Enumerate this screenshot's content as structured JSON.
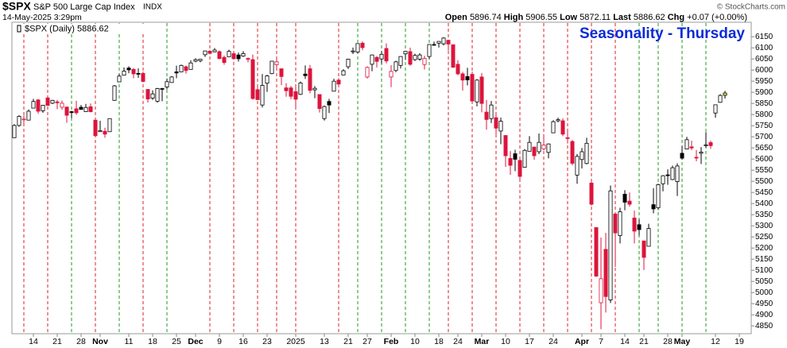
{
  "chart_data": {
    "type": "candlestick",
    "header": {
      "symbol": "$SPX",
      "name": "S&P 500 Large Cap Index",
      "exchange": "INDX",
      "datetime": "14-May-2025 3:29pm",
      "open_label": "Open",
      "high_label": "High",
      "low_label": "Low",
      "last_label": "Last",
      "chg_label": "Chg",
      "chg": "+0.07 (+0.00%)",
      "credit": "© StockCharts.com"
    },
    "legend_label": "$SPX (Daily)",
    "title": "Seasonality - Thursday",
    "open": [
      5696,
      5751,
      5778,
      5775,
      5829,
      5866,
      5817,
      5875,
      5851,
      5857,
      5833,
      5834,
      5813,
      5826,
      5833,
      5813,
      5835,
      5775,
      5723,
      5725,
      5723,
      5864,
      5947,
      5977,
      6009,
      6003,
      5985,
      5985,
      5913,
      5874,
      5860,
      5917,
      5924,
      5944,
      5992,
      5992,
      6015,
      6003,
      6040,
      6042,
      6069,
      6085,
      6082,
      6083,
      6057,
      6060,
      6074,
      6068,
      6063,
      6052,
      6047,
      5912,
      5843,
      5941,
      5984,
      6024,
      6006,
      5920,
      5920,
      5903,
      5891,
      5982,
      6006,
      5911,
      5890,
      5782,
      5859,
      5905,
      5955,
      5978,
      6015,
      6082,
      6081,
      6121,
      5969,
      6026,
      6057,
      6050,
      6097,
      5969,
      5998,
      6021,
      6073,
      6083,
      6047,
      6049,
      6025,
      6061,
      6115,
      6121,
      6118,
      6134,
      6114,
      6026,
      5983,
      5971,
      5981,
      5857,
      5969,
      5811,
      5782,
      5786,
      5726,
      5706,
      5603,
      5624,
      5594,
      5563,
      5635,
      5654,
      5633,
      5646,
      5630,
      5718,
      5772,
      5772,
      5696,
      5679,
      5528,
      5598,
      5580,
      5492,
      5292,
      4954,
      5194,
      4967,
      5353,
      5256,
      5442,
      5411,
      5335,
      5305,
      5232,
      5208,
      5395,
      5381,
      5489,
      5529,
      5508,
      5499,
      5626,
      5645,
      5655,
      5608,
      5626,
      5663,
      5674,
      5807,
      5855,
      5896.74
    ],
    "high": [
      5757,
      5797,
      5796,
      5823,
      5871,
      5870,
      5842,
      5878,
      5866,
      5866,
      5863,
      5835,
      5817,
      5862,
      5843,
      5848,
      5850,
      5775,
      5772,
      5741,
      5783,
      5933,
      5983,
      6012,
      6017,
      6009,
      6008,
      5993,
      5915,
      5909,
      5920,
      5920,
      5962,
      5973,
      6020,
      6025,
      6020,
      6044,
      6053,
      6050,
      6087,
      6089,
      6099,
      6088,
      6065,
      6092,
      6079,
      6079,
      6085,
      6057,
      6070,
      5935,
      5982,
      5979,
      6040,
      6049,
      6006,
      5941,
      5929,
      5935,
      5949,
      6021,
      6023,
      5928,
      5890,
      5841,
      5871,
      5961,
      5964,
      6004,
      6051,
      6101,
      6119,
      6129,
      6017,
      6070,
      6063,
      6086,
      6120,
      6022,
      6042,
      6062,
      6084,
      6101,
      6074,
      6076,
      6064,
      6116,
      6128,
      6129,
      6147,
      6135,
      6114,
      6044,
      5992,
      6010,
      5993,
      5959,
      5987,
      5866,
      5861,
      5812,
      5786,
      5706,
      5636,
      5642,
      5598,
      5645,
      5703,
      5654,
      5715,
      5712,
      5670,
      5775,
      5786,
      5783,
      5732,
      5686,
      5623,
      5650,
      5696,
      5501,
      5292,
      5247,
      5268,
      5481,
      5353,
      5381,
      5460,
      5450,
      5368,
      5329,
      5232,
      5309,
      5469,
      5489,
      5528,
      5554,
      5571,
      5581,
      5659,
      5700,
      5683,
      5641,
      5654,
      5721,
      5683,
      5845,
      5892,
      5906.55
    ],
    "low": [
      5696,
      5745,
      5762,
      5775,
      5829,
      5804,
      5808,
      5840,
      5847,
      5824,
      5822,
      5763,
      5784,
      5799,
      5823,
      5812,
      5810,
      5703,
      5723,
      5696,
      5723,
      5862,
      5947,
      5976,
      5986,
      5963,
      5965,
      5945,
      5854,
      5866,
      5854,
      5860,
      5913,
      5944,
      5963,
      5992,
      5984,
      6003,
      6035,
      6035,
      6059,
      6071,
      6080,
      6048,
      6024,
      6060,
      6051,
      6038,
      6059,
      6035,
      5867,
      5866,
      5832,
      5902,
      5981,
      6007,
      5932,
      5880,
      5869,
      5829,
      5888,
      5960,
      5896,
      5874,
      5809,
      5773,
      5807,
      5905,
      5931,
      5978,
      6005,
      6072,
      6075,
      6089,
      5962,
      5995,
      6012,
      6028,
      6030,
      5923,
      5991,
      6007,
      6046,
      6019,
      6041,
      6042,
      6003,
      6049,
      6111,
      6101,
      6111,
      6088,
      6009,
      5977,
      5908,
      5931,
      5858,
      5837,
      5810,
      5732,
      5762,
      5712,
      5667,
      5565,
      5529,
      5546,
      5504,
      5563,
      5635,
      5597,
      5622,
      5639,
      5603,
      5718,
      5765,
      5703,
      5670,
      5572,
      5489,
      5558,
      5576,
      5391,
      5070,
      4835,
      4910,
      4953,
      5115,
      5221,
      5370,
      5386,
      5221,
      5256,
      5101,
      5208,
      5356,
      5371,
      5455,
      5484,
      5505,
      5434,
      5597,
      5645,
      5640,
      5590,
      5578,
      5651,
      5646,
      5786,
      5853,
      5872.11
    ],
    "close": [
      5751,
      5792,
      5780,
      5815,
      5859,
      5815,
      5842,
      5841,
      5864,
      5853,
      5851,
      5797,
      5809,
      5808,
      5823,
      5832,
      5813,
      5705,
      5728,
      5712,
      5782,
      5929,
      5973,
      5995,
      6001,
      5983,
      5985,
      5949,
      5870,
      5893,
      5917,
      5917,
      5948,
      5969,
      5987,
      6021,
      5998,
      6032,
      6047,
      6049,
      6086,
      6075,
      6090,
      6052,
      6034,
      6084,
      6051,
      6051,
      6074,
      6050,
      5872,
      5867,
      5931,
      5974,
      6040,
      6037,
      5971,
      5907,
      5882,
      5869,
      5942,
      5975,
      5909,
      5918,
      5827,
      5836,
      5843,
      5950,
      5937,
      5997,
      6049,
      6086,
      6119,
      6101,
      6012,
      6068,
      6039,
      6071,
      6041,
      5994,
      6037,
      6061,
      6084,
      6026,
      6066,
      6068,
      6052,
      6115,
      6115,
      6129,
      6144,
      6117,
      6013,
      5983,
      5955,
      5956,
      5861,
      5955,
      5850,
      5778,
      5843,
      5739,
      5770,
      5615,
      5572,
      5599,
      5522,
      5639,
      5675,
      5615,
      5675,
      5663,
      5668,
      5768,
      5777,
      5712,
      5693,
      5581,
      5612,
      5633,
      5671,
      5397,
      5074,
      5062,
      4982,
      5457,
      5268,
      5363,
      5406,
      5397,
      5276,
      5283,
      5158,
      5288,
      5376,
      5485,
      5525,
      5529,
      5561,
      5569,
      5604,
      5687,
      5650,
      5607,
      5631,
      5664,
      5660,
      5844,
      5886,
      5886.62
    ],
    "thursdays": [
      2,
      7,
      12,
      17,
      22,
      27,
      32,
      41,
      46,
      51,
      55,
      59,
      68,
      72,
      77,
      82,
      87,
      91,
      96,
      101,
      106,
      111,
      116,
      121,
      126,
      131,
      135,
      140,
      145
    ],
    "xlim": [
      -0.5,
      154.5
    ],
    "xticks": [
      {
        "value": 4,
        "label": "14"
      },
      {
        "value": 9,
        "label": "21"
      },
      {
        "value": 14,
        "label": "28"
      },
      {
        "value": 18,
        "label": "Nov"
      },
      {
        "value": 24,
        "label": "11"
      },
      {
        "value": 29,
        "label": "18"
      },
      {
        "value": 34,
        "label": "25"
      },
      {
        "value": 38,
        "label": "Dec"
      },
      {
        "value": 43,
        "label": "9"
      },
      {
        "value": 48,
        "label": "16"
      },
      {
        "value": 53,
        "label": "23"
      },
      {
        "value": 59,
        "label": "2025"
      },
      {
        "value": 65,
        "label": "13"
      },
      {
        "value": 70,
        "label": "21"
      },
      {
        "value": 74,
        "label": "27"
      },
      {
        "value": 79,
        "label": "Feb"
      },
      {
        "value": 84,
        "label": "10"
      },
      {
        "value": 89,
        "label": "18"
      },
      {
        "value": 93,
        "label": "24"
      },
      {
        "value": 98,
        "label": "Mar"
      },
      {
        "value": 103,
        "label": "10"
      },
      {
        "value": 108,
        "label": "17"
      },
      {
        "value": 113,
        "label": "24"
      },
      {
        "value": 119,
        "label": "Apr"
      },
      {
        "value": 123,
        "label": "7"
      },
      {
        "value": 128,
        "label": "14"
      },
      {
        "value": 132,
        "label": "21"
      },
      {
        "value": 137,
        "label": "28"
      },
      {
        "value": 140,
        "label": "May"
      },
      {
        "value": 147,
        "label": "12"
      },
      {
        "value": 152,
        "label": "19"
      }
    ],
    "ylim": [
      4815,
      6215
    ],
    "yticks": [
      4850,
      4900,
      4950,
      5000,
      5050,
      5100,
      5150,
      5200,
      5250,
      5300,
      5350,
      5400,
      5450,
      5500,
      5550,
      5600,
      5650,
      5700,
      5750,
      5800,
      5850,
      5900,
      5950,
      6000,
      6050,
      6100,
      6150
    ],
    "colors": {
      "up": "#000000",
      "down": "#dc143c",
      "line_up": "#229922",
      "line_down": "#dd2222",
      "last_fill": "#ffff33",
      "title": "#0a2ad8"
    }
  }
}
